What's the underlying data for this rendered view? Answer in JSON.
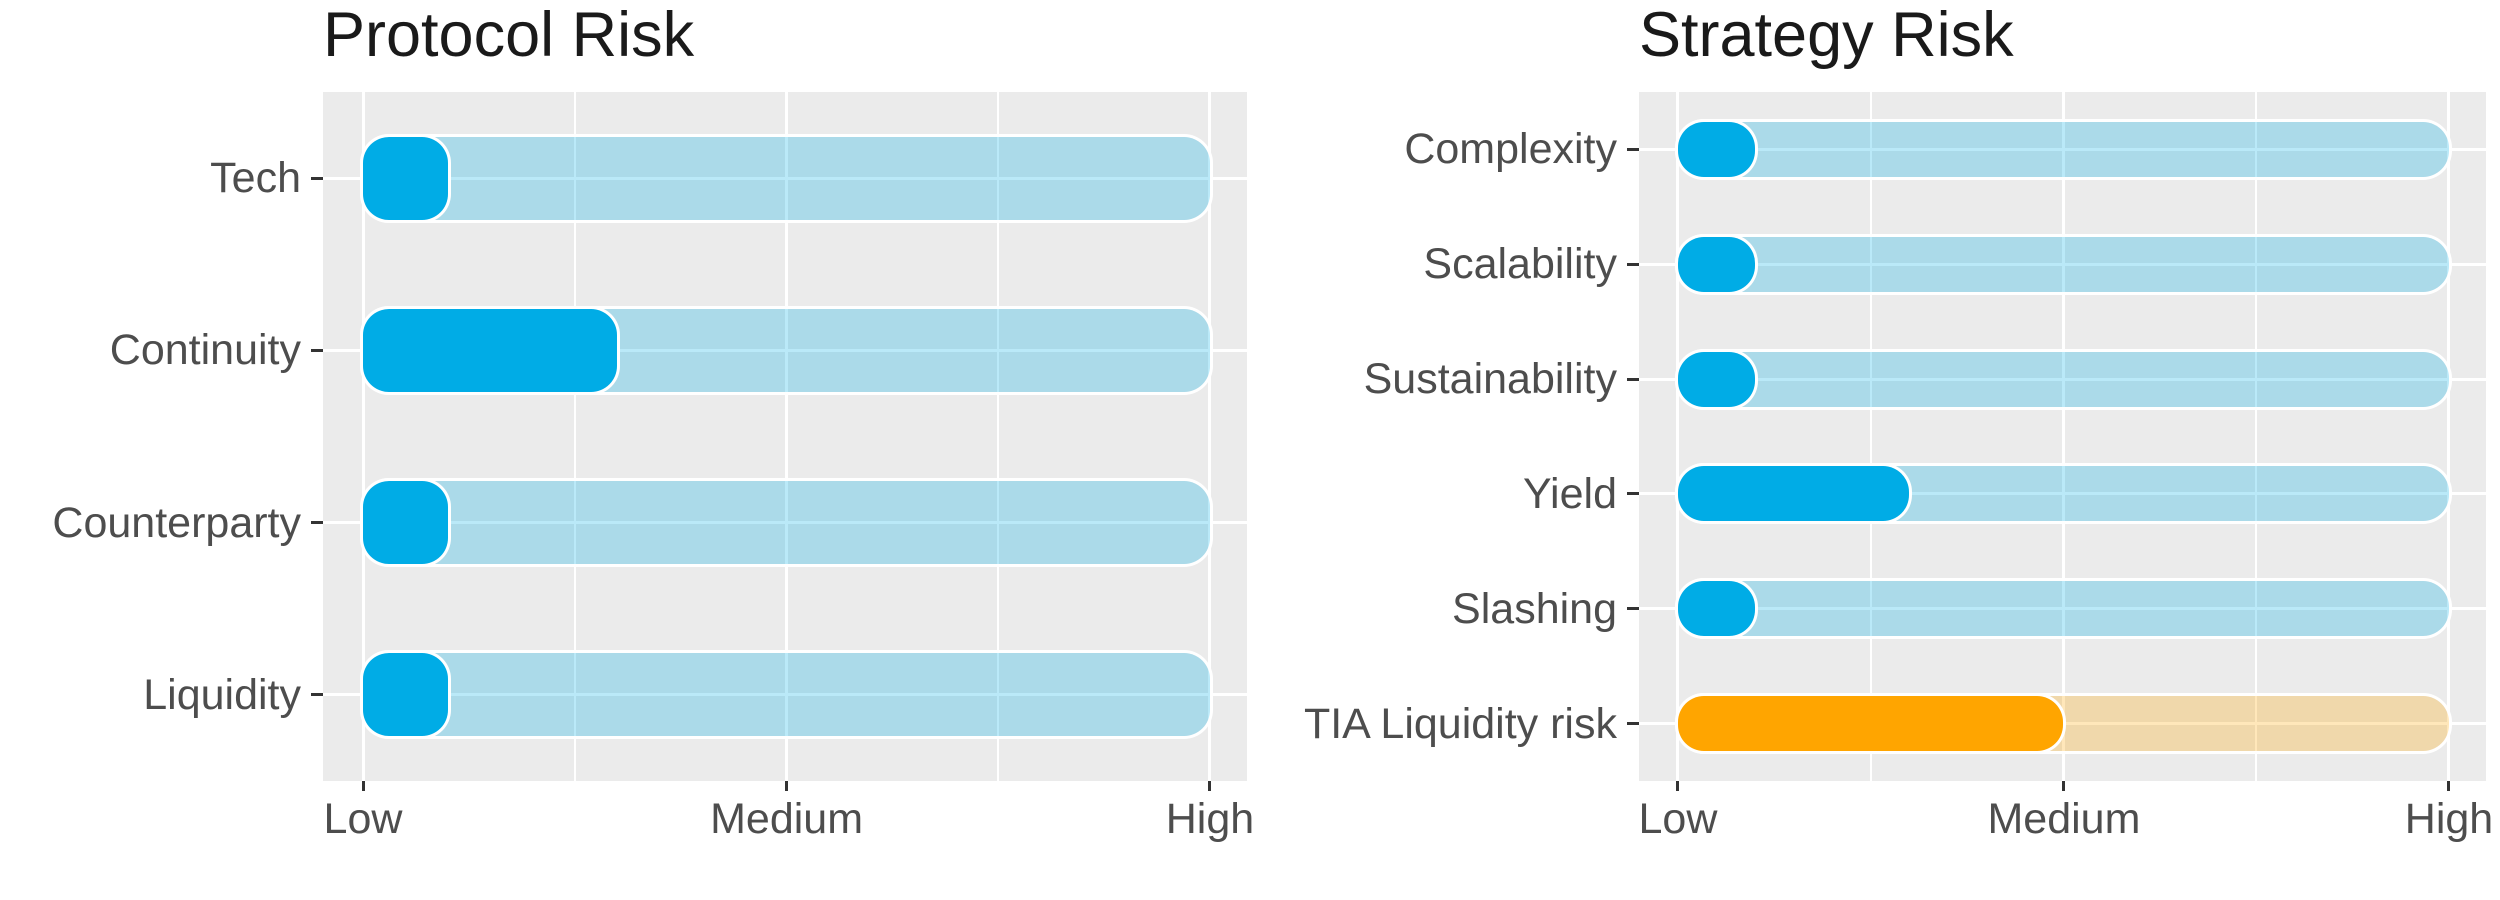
{
  "palette": {
    "value_blue": "#00ACE6",
    "value_orange": "#FFA500",
    "track_alpha": 0.27,
    "panel_background": "#EBEBEB",
    "gridline": "#FFFFFF",
    "title_text": "#1A1A1A",
    "axis_text": "#4D4D4D",
    "tick_mark": "#333333"
  },
  "chart_data": [
    {
      "type": "bar",
      "orientation": "horizontal",
      "title": "Protocol Risk",
      "categories": [
        "Tech",
        "Continuity",
        "Counterparty",
        "Liquidity"
      ],
      "values": [
        0.1,
        0.3,
        0.1,
        0.1
      ],
      "bar_color_keys": [
        "value_blue",
        "value_blue",
        "value_blue",
        "value_blue"
      ],
      "track": {
        "from": 0,
        "to": 1,
        "style": "same hue as value bar at low alpha"
      },
      "xlabel": "",
      "ylabel": "",
      "xlim": [
        0,
        1
      ],
      "x_ticks": [
        {
          "label": "Low",
          "value": 0
        },
        {
          "label": "Medium",
          "value": 0.5
        },
        {
          "label": "High",
          "value": 1
        }
      ],
      "grid": "white major gridlines on gray panel, vertical minors at 0.25 and 0.75",
      "legend": "none"
    },
    {
      "type": "bar",
      "orientation": "horizontal",
      "title": "Strategy Risk",
      "categories": [
        "Complexity",
        "Scalability",
        "Sustainability",
        "Yield",
        "Slashing",
        "TIA Liquidity risk"
      ],
      "values": [
        0.1,
        0.1,
        0.1,
        0.3,
        0.1,
        0.5
      ],
      "bar_color_keys": [
        "value_blue",
        "value_blue",
        "value_blue",
        "value_blue",
        "value_blue",
        "value_orange"
      ],
      "track": {
        "from": 0,
        "to": 1,
        "style": "same hue as value bar at low alpha"
      },
      "xlabel": "",
      "ylabel": "",
      "xlim": [
        0,
        1
      ],
      "x_ticks": [
        {
          "label": "Low",
          "value": 0
        },
        {
          "label": "Medium",
          "value": 0.5
        },
        {
          "label": "High",
          "value": 1
        }
      ],
      "grid": "white major gridlines on gray panel, vertical minors at 0.25 and 0.75",
      "legend": "none"
    }
  ]
}
